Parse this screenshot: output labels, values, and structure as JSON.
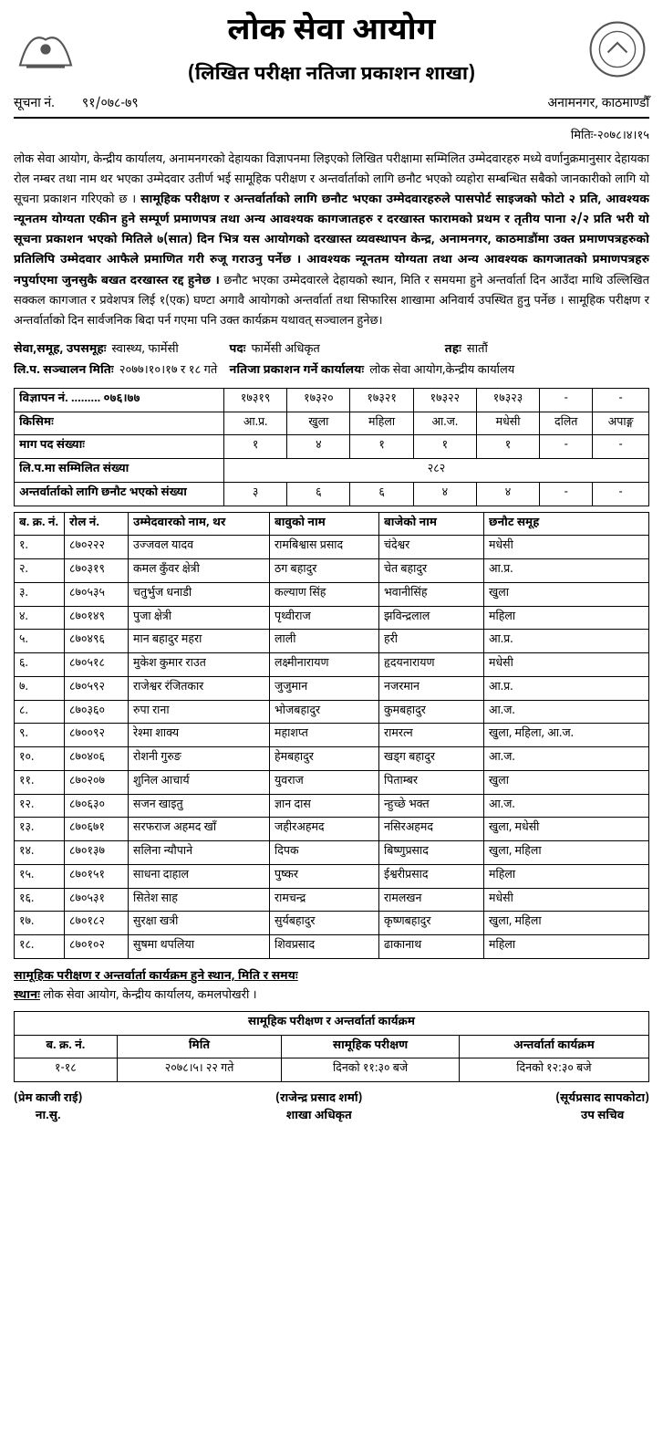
{
  "header": {
    "main_title": "लोक सेवा आयोग",
    "sub_title": "(लिखित परीक्षा नतिजा प्रकाशन शाखा)",
    "notice_label": "सूचना नं.",
    "notice_no": "९१/०७८-७९",
    "location": "अनामनगर, काठमाण्डौँ",
    "date_label": "मितिः-",
    "date": "२०७८।४।१५"
  },
  "body": {
    "para1": "लोक सेवा आयोग, केन्द्रीय कार्यालय, अनामनगरको देहायका विज्ञापनमा लिइएको लिखित परीक्षामा सम्मिलित उम्मेदवारहरु मध्ये वर्णानुक्रमानुसार देहायका रोल नम्बर तथा नाम थर भएका उम्मेदवार उतीर्ण भई सामूहिक परीक्षण र अन्तर्वार्ताको लागि छनौट भएको व्यहोरा सम्बन्धित सबैको जानकारीको लागि यो सूचना प्रकाशन गरिएको छ ।",
    "para_bold": "सामूहिक परीक्षण र अन्तर्वार्ताको लागि छनौट भएका उम्मेदवारहरुले पासपोर्ट साइजको फोटो २ प्रति, आवश्यक न्यूनतम योग्यता एकीन हुने सम्पूर्ण प्रमाणपत्र तथा अन्य आवश्यक कागजातहरु र दरखास्त फारामको प्रथम र तृतीय पाना २/२ प्रति भरी यो सूचना प्रकाशन भएको मितिले ७(सात) दिन भित्र यस आयोगको दरखास्त व्यवस्थापन केन्द्र, अनामनगर, काठमाडौंमा उक्त प्रमाणपत्रहरुको प्रतिलिपि उम्मेदवार आफैले प्रमाणित गरी रुजू गराउनु पर्नेछ । आवश्यक न्यूनतम योग्यता तथा अन्य आवश्यक कागजातको प्रमाणपत्रहरु नपुर्याएमा जुनसुकै बखत दरखास्त रद्द हुनेछ ।",
    "para2": "छनौट भएका उम्मेदवारले देहायको स्थान, मिति र समयमा हुने अन्तर्वार्ता दिन आउँदा माथि उल्लिखित सक्कल कागजात र प्रवेशपत्र लिई १(एक) घण्टा अगावै आयोगको अन्तर्वार्ता तथा सिफारिस शाखामा अनिवार्य उपस्थित हुनु पर्नेछ । सामूहिक परीक्षण र अन्तर्वार्ताको दिन सार्वजनिक बिदा पर्न गएमा पनि उक्त कार्यक्रम यथावत् सञ्चालन हुनेछ।"
  },
  "meta": {
    "service_label": "सेवा,समूह, उपसमूहः",
    "service": "स्वास्थ्य, फार्मेसी",
    "post_label": "पदः",
    "post": "फार्मेसी अधिकृत",
    "level_label": "तहः",
    "level": "सातौं",
    "exam_date_label": "लि.प. सञ्चालन मितिः",
    "exam_date": "२०७७।१०।१७ र १८ गते",
    "pub_office_label": "नतिजा प्रकाशन गर्ने कार्यालयः",
    "pub_office": "लोक सेवा आयोग,केन्द्रीय कार्यालय"
  },
  "summary": {
    "rows": [
      {
        "label": "विज्ञापन नं. ......... ०७६।७७",
        "cells": [
          "१७३१९",
          "१७३२०",
          "१७३२१",
          "१७३२२",
          "१७३२३",
          "-",
          "-"
        ]
      },
      {
        "label": "किसिमः",
        "cells": [
          "आ.प्र.",
          "खुला",
          "महिला",
          "आ.ज.",
          "मधेसी",
          "दलित",
          "अपाङ्ग"
        ]
      },
      {
        "label": "माग पद संख्याः",
        "cells": [
          "१",
          "४",
          "१",
          "१",
          "१",
          "-",
          "-"
        ]
      },
      {
        "label": "लि.प.मा सम्मिलित संख्या",
        "merged": "२८२"
      },
      {
        "label": "अन्तर्वार्ताको लागि छनौट भएको संख्या",
        "cells": [
          "३",
          "६",
          "६",
          "४",
          "४",
          "-",
          "-"
        ]
      }
    ]
  },
  "candidates": {
    "headers": [
      "ब. क्र. नं.",
      "रोल नं.",
      "उम्मेदवारको नाम, थर",
      "बावुको नाम",
      "बाजेको नाम",
      "छनौट समूह"
    ],
    "rows": [
      [
        "१.",
        "८७०२२२",
        "उज्जवल यादव",
        "रामबिश्वास प्रसाद",
        "चंदेश्वर",
        "मधेसी"
      ],
      [
        "२.",
        "८७०३१९",
        "कमल कुँवर क्षेत्री",
        "ठग बहादुर",
        "चेत बहादुर",
        "आ.प्र."
      ],
      [
        "३.",
        "८७०५३५",
        "चतुर्भुज धनाडी",
        "कल्याण सिंह",
        "भवानीसिंह",
        "खुला"
      ],
      [
        "४.",
        "८७०१४९",
        "पुजा क्षेत्री",
        "पृथ्वीराज",
        "झविन्द्रलाल",
        "महिला"
      ],
      [
        "५.",
        "८७०४९६",
        "मान बहादुर महरा",
        "लाली",
        "हरी",
        "आ.प्र."
      ],
      [
        "६.",
        "८७०५१८",
        "मुकेश कुमार राउत",
        "लक्ष्मीनारायण",
        "हृदयनारायण",
        "मधेसी"
      ],
      [
        "७.",
        "८७०५९२",
        "राजेश्वर रंजितकार",
        "जुजुमान",
        "नजरमान",
        "आ.प्र."
      ],
      [
        "८.",
        "८७०३६०",
        "रुपा राना",
        "भोजबहादुर",
        "कुमबहादुर",
        "आ.ज."
      ],
      [
        "९.",
        "८७००९२",
        "रेश्मा शाक्य",
        "महाशप्त",
        "रामरत्न",
        "खुला, महिला, आ.ज."
      ],
      [
        "१०.",
        "८७०४०६",
        "रोशनी गुरुङ",
        "हेमबहादुर",
        "खड्ग बहादुर",
        "आ.ज."
      ],
      [
        "११.",
        "८७०२०७",
        "शुनिल आचार्य",
        "युवराज",
        "पिताम्बर",
        "खुला"
      ],
      [
        "१२.",
        "८७०६३०",
        "सजन खाइतु",
        "ज्ञान दास",
        "न्हुच्छे भक्त",
        "आ.ज."
      ],
      [
        "१३.",
        "८७०६७१",
        "सरफराज अहमद खाँ",
        "जहीरअहमद",
        "नसिरअहमद",
        "खुला, मधेसी"
      ],
      [
        "१४.",
        "८७०१३७",
        "सलिना न्यौपाने",
        "दिपक",
        "बिष्णुप्रसाद",
        "खुला, महिला"
      ],
      [
        "१५.",
        "८७०१५१",
        "साधना दाहाल",
        "पुष्कर",
        "ईश्वरीप्रसाद",
        "महिला"
      ],
      [
        "१६.",
        "८७०५३१",
        "सितेश साह",
        "रामचन्द्र",
        "रामलखन",
        "मधेसी"
      ],
      [
        "१७.",
        "८७०१८२",
        "सुरक्षा खत्री",
        "सुर्यबहादुर",
        "कृष्णबहादुर",
        "खुला, महिला"
      ],
      [
        "१८.",
        "८७०१०२",
        "सुषमा थपलिया",
        "शिवप्रसाद",
        "ढाकानाथ",
        "महिला"
      ]
    ]
  },
  "schedule": {
    "title": "सामूहिक परीक्षण र अन्तर्वार्ता कार्यक्रम हुने स्थान, मिति र समयः",
    "venue_label": "स्थानः",
    "venue": "लोक सेवा आयोग, केन्द्रीय कार्यालय, कमलपोखरी ।",
    "table_title": "सामूहिक परीक्षण र अन्तर्वार्ता कार्यक्रम",
    "headers": [
      "ब. क्र. नं.",
      "मिति",
      "सामूहिक परीक्षण",
      "अन्तर्वार्ता कार्यक्रम"
    ],
    "row": [
      "१-१८",
      "२०७८।५। २२ गते",
      "दिनको ११:३० बजे",
      "दिनको १२:३० बजे"
    ]
  },
  "signatures": [
    {
      "name": "(प्रेम काजी राई)",
      "title": "ना.सु."
    },
    {
      "name": "(राजेन्द्र प्रसाद शर्मा)",
      "title": "शाखा अधिकृत"
    },
    {
      "name": "(सूर्यप्रसाद सापकोटा)",
      "title": "उप सचिव"
    }
  ]
}
